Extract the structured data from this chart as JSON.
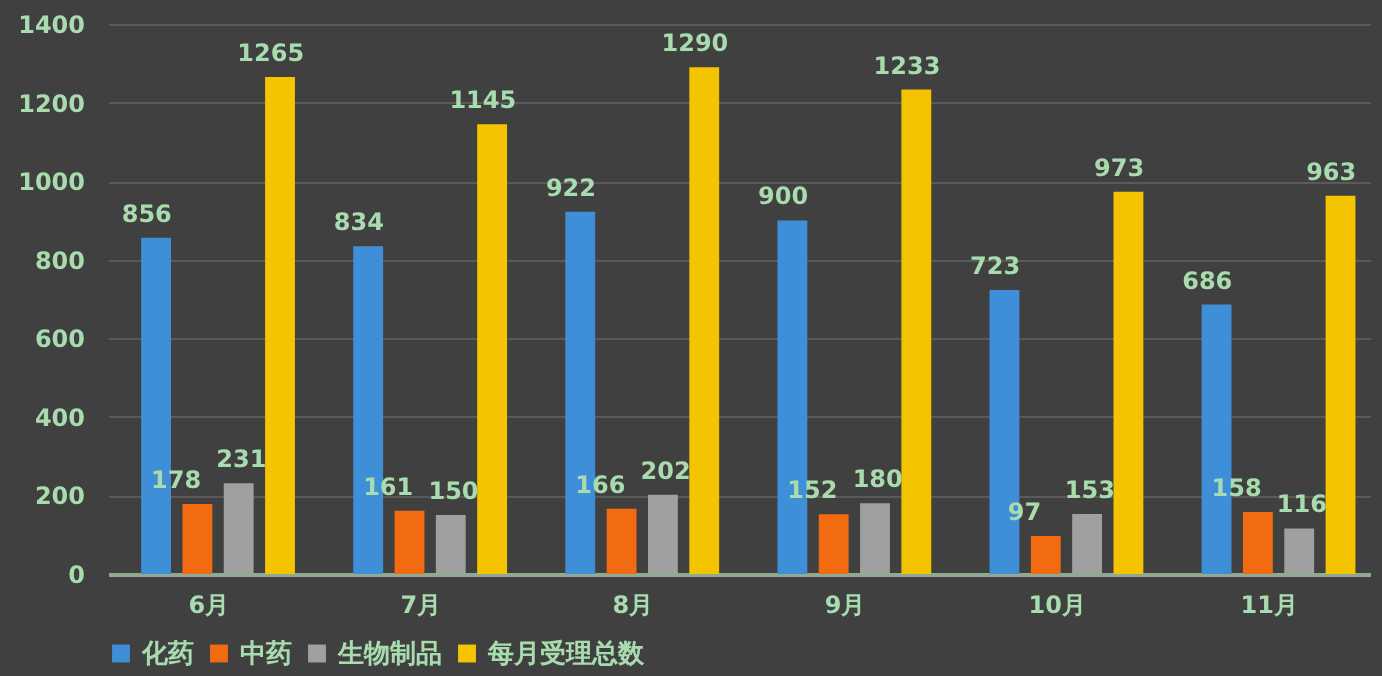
{
  "chart_data": {
    "type": "bar",
    "categories": [
      "6月",
      "7月",
      "8月",
      "9月",
      "10月",
      "11月"
    ],
    "series": [
      {
        "name": "化药",
        "color": "#3f8fd8",
        "values": [
          856,
          834,
          922,
          900,
          723,
          686
        ]
      },
      {
        "name": "中药",
        "color": "#f26b10",
        "values": [
          178,
          161,
          166,
          152,
          97,
          158
        ]
      },
      {
        "name": "生物制品",
        "color": "#a0a0a0",
        "values": [
          231,
          150,
          202,
          180,
          153,
          116
        ]
      },
      {
        "name": "每月受理总数",
        "color": "#f5c400",
        "values": [
          1265,
          1145,
          1290,
          1233,
          973,
          963
        ]
      }
    ],
    "ylim": [
      0,
      1400
    ],
    "yticks": [
      0,
      200,
      400,
      600,
      800,
      1000,
      1200,
      1400
    ],
    "grid": "y",
    "legend": "bottom",
    "data_labels": true
  }
}
